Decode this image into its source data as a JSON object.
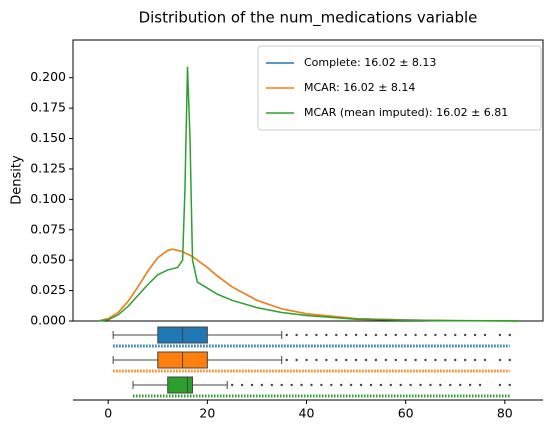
{
  "chart_data": [
    {
      "type": "line",
      "title": "Distribution of the num_medications variable",
      "ylabel": "Density",
      "x": [
        -2,
        0,
        2,
        4,
        6,
        8,
        10,
        12,
        13,
        14,
        15,
        15.5,
        16,
        16.5,
        17,
        18,
        20,
        22,
        25,
        30,
        35,
        40,
        50,
        60,
        70,
        80,
        83
      ],
      "series": [
        {
          "name": "Complete: 16.02 ± 8.13",
          "color": "#1f77b4",
          "values": [
            0,
            0.002,
            0.007,
            0.016,
            0.028,
            0.041,
            0.052,
            0.058,
            0.059,
            0.058,
            0.057,
            0.056,
            0.055,
            0.054,
            0.053,
            0.05,
            0.044,
            0.037,
            0.028,
            0.017,
            0.01,
            0.006,
            0.002,
            0.0008,
            0.0003,
            0.0001,
            0
          ]
        },
        {
          "name": "MCAR: 16.02 ± 8.14",
          "color": "#ff7f0e",
          "values": [
            0,
            0.002,
            0.007,
            0.016,
            0.028,
            0.041,
            0.052,
            0.058,
            0.059,
            0.058,
            0.057,
            0.056,
            0.055,
            0.054,
            0.053,
            0.05,
            0.044,
            0.037,
            0.028,
            0.017,
            0.01,
            0.006,
            0.002,
            0.0008,
            0.0003,
            0.0001,
            0
          ]
        },
        {
          "name": "MCAR (mean imputed): 16.02 ± 6.81",
          "color": "#2ca02c",
          "values": [
            0,
            0.001,
            0.005,
            0.012,
            0.021,
            0.03,
            0.038,
            0.042,
            0.043,
            0.044,
            0.05,
            0.11,
            0.209,
            0.15,
            0.05,
            0.032,
            0.027,
            0.022,
            0.017,
            0.011,
            0.007,
            0.0045,
            0.0015,
            0.0006,
            0.0002,
            0.0001,
            0
          ]
        }
      ],
      "xlim": [
        -7.1,
        87.7
      ],
      "ylim": [
        0,
        0.231
      ],
      "yticks": [
        {
          "value": 0,
          "label": "0.000"
        },
        {
          "value": 0.025,
          "label": "0.025"
        },
        {
          "value": 0.05,
          "label": "0.050"
        },
        {
          "value": 0.075,
          "label": "0.075"
        },
        {
          "value": 0.1,
          "label": "0.100"
        },
        {
          "value": 0.125,
          "label": "0.125"
        },
        {
          "value": 0.15,
          "label": "0.150"
        },
        {
          "value": 0.175,
          "label": "0.175"
        },
        {
          "value": 0.2,
          "label": "0.200"
        }
      ],
      "legend": "upper right"
    },
    {
      "type": "box",
      "boxes": [
        {
          "color": "#1f77b4",
          "whislo": 1,
          "q1": 10,
          "med": 15,
          "q3": 20,
          "whishi": 35,
          "fliers": [
            36,
            38,
            40,
            42,
            44,
            46,
            48,
            50,
            52,
            54,
            56,
            58,
            60,
            62,
            64,
            66,
            68,
            70,
            72,
            74,
            76,
            79,
            81
          ]
        },
        {
          "color": "#ff7f0e",
          "whislo": 1,
          "q1": 10,
          "med": 15,
          "q3": 20,
          "whishi": 35,
          "fliers": [
            36,
            38,
            40,
            42,
            44,
            46,
            48,
            50,
            52,
            54,
            56,
            58,
            60,
            62,
            64,
            66,
            68,
            70,
            72,
            74,
            76,
            79,
            81
          ]
        },
        {
          "color": "#2ca02c",
          "whislo": 5,
          "q1": 12,
          "med": 16,
          "q3": 17,
          "whishi": 24,
          "fliers": [
            25,
            27,
            29,
            31,
            33,
            35,
            37,
            39,
            41,
            43,
            45,
            47,
            49,
            51,
            53,
            55,
            57,
            59,
            61,
            63,
            65,
            67,
            69,
            71,
            73,
            75,
            79,
            81
          ]
        }
      ],
      "xlim": [
        -7.1,
        87.7
      ],
      "xticks": [
        0,
        20,
        40,
        60,
        80
      ]
    }
  ]
}
